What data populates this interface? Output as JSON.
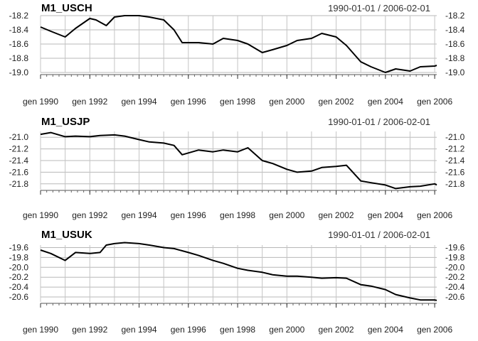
{
  "chart_data": [
    {
      "type": "line",
      "title": "M1_USCH",
      "date_range": "1990-01-01 / 2006-02-01",
      "x_start": "1990-01",
      "x_end": "2006-02",
      "x_tick_labels": [
        "gen 1990",
        "gen 1992",
        "gen 1994",
        "gen 1996",
        "gen 1998",
        "gen 2000",
        "gen 2002",
        "gen 2004",
        "gen 2006"
      ],
      "x_tick_dates": [
        "1990-01",
        "1992-01",
        "1994-01",
        "1996-01",
        "1998-01",
        "2000-01",
        "2002-01",
        "2004-01",
        "2006-01"
      ],
      "ylim": [
        -18.2,
        -19.0
      ],
      "yticks": [
        -18.2,
        -18.4,
        -18.6,
        -18.8,
        -19.0
      ],
      "y_tick_labels": [
        "-18.2",
        "-18.4",
        "-18.6",
        "-18.8",
        "-19.0"
      ],
      "grid": true,
      "series": [
        {
          "x": [
            "1990-01",
            "1990-06",
            "1991-01",
            "1991-06",
            "1992-01",
            "1992-04",
            "1992-09",
            "1993-01",
            "1993-06",
            "1994-01",
            "1994-06",
            "1995-01",
            "1995-06",
            "1995-10",
            "1996-06",
            "1997-01",
            "1997-06",
            "1998-01",
            "1998-06",
            "1999-01",
            "1999-06",
            "2000-01",
            "2000-06",
            "2001-01",
            "2001-06",
            "2002-01",
            "2002-06",
            "2003-01",
            "2003-06",
            "2004-01",
            "2004-06",
            "2005-01",
            "2005-06",
            "2006-01",
            "2006-02"
          ],
          "y": [
            -18.36,
            -18.42,
            -18.5,
            -18.38,
            -18.24,
            -18.26,
            -18.34,
            -18.22,
            -18.2,
            -18.2,
            -18.22,
            -18.26,
            -18.4,
            -18.58,
            -18.58,
            -18.6,
            -18.52,
            -18.55,
            -18.6,
            -18.72,
            -18.68,
            -18.62,
            -18.55,
            -18.52,
            -18.45,
            -18.5,
            -18.62,
            -18.85,
            -18.92,
            -19.0,
            -18.95,
            -18.98,
            -18.92,
            -18.91,
            -18.9
          ]
        }
      ]
    },
    {
      "type": "line",
      "title": "M1_USJP",
      "date_range": "1990-01-01 / 2006-02-01",
      "x_start": "1990-01",
      "x_end": "2006-02",
      "x_tick_labels": [
        "gen 1990",
        "gen 1992",
        "gen 1994",
        "gen 1996",
        "gen 1998",
        "gen 2000",
        "gen 2002",
        "gen 2004",
        "gen 2006"
      ],
      "x_tick_dates": [
        "1990-01",
        "1992-01",
        "1994-01",
        "1996-01",
        "1998-01",
        "2000-01",
        "2002-01",
        "2004-01",
        "2006-01"
      ],
      "ylim": [
        -20.9,
        -21.9
      ],
      "yticks": [
        -21.0,
        -21.2,
        -21.4,
        -21.6,
        -21.8
      ],
      "y_tick_labels": [
        "-21.0",
        "-21.2",
        "-21.4",
        "-21.6",
        "-21.8"
      ],
      "grid": true,
      "series": [
        {
          "x": [
            "1990-01",
            "1990-06",
            "1991-01",
            "1991-06",
            "1992-01",
            "1992-06",
            "1993-01",
            "1993-06",
            "1994-01",
            "1994-06",
            "1995-01",
            "1995-06",
            "1995-10",
            "1996-06",
            "1997-01",
            "1997-06",
            "1998-01",
            "1998-06",
            "1999-01",
            "1999-06",
            "2000-01",
            "2000-06",
            "2001-01",
            "2001-06",
            "2002-01",
            "2002-06",
            "2003-01",
            "2003-06",
            "2004-01",
            "2004-06",
            "2005-01",
            "2005-06",
            "2006-01",
            "2006-02"
          ],
          "y": [
            -20.95,
            -20.92,
            -20.99,
            -20.98,
            -20.99,
            -20.97,
            -20.96,
            -20.98,
            -21.04,
            -21.08,
            -21.1,
            -21.14,
            -21.3,
            -21.22,
            -21.25,
            -21.22,
            -21.25,
            -21.18,
            -21.4,
            -21.45,
            -21.55,
            -21.6,
            -21.58,
            -21.52,
            -21.5,
            -21.48,
            -21.75,
            -21.78,
            -21.82,
            -21.88,
            -21.85,
            -21.84,
            -21.8,
            -21.82
          ]
        }
      ]
    },
    {
      "type": "line",
      "title": "M1_USUK",
      "date_range": "1990-01-01 / 2006-02-01",
      "x_start": "1990-01",
      "x_end": "2006-02",
      "x_tick_labels": [
        "gen 1990",
        "gen 1992",
        "gen 1994",
        "gen 1996",
        "gen 1998",
        "gen 2000",
        "gen 2002",
        "gen 2004",
        "gen 2006"
      ],
      "x_tick_dates": [
        "1990-01",
        "1992-01",
        "1994-01",
        "1996-01",
        "1998-01",
        "2000-01",
        "2002-01",
        "2004-01",
        "2006-01"
      ],
      "ylim": [
        -19.55,
        -20.7
      ],
      "yticks": [
        -19.6,
        -19.8,
        -20.0,
        -20.2,
        -20.4,
        -20.6
      ],
      "y_tick_labels": [
        "-19.6",
        "-19.8",
        "-20.0",
        "-20.2",
        "-20.4",
        "-20.6"
      ],
      "grid": true,
      "series": [
        {
          "x": [
            "1990-01",
            "1990-06",
            "1991-01",
            "1991-06",
            "1992-01",
            "1992-06",
            "1992-09",
            "1993-01",
            "1993-06",
            "1994-01",
            "1994-06",
            "1995-01",
            "1995-06",
            "1996-01",
            "1996-06",
            "1997-01",
            "1997-06",
            "1998-01",
            "1998-06",
            "1999-01",
            "1999-06",
            "2000-01",
            "2000-06",
            "2001-01",
            "2001-06",
            "2002-01",
            "2002-06",
            "2003-01",
            "2003-06",
            "2004-01",
            "2004-06",
            "2005-01",
            "2005-06",
            "2006-01",
            "2006-02"
          ],
          "y": [
            -19.65,
            -19.72,
            -19.86,
            -19.7,
            -19.72,
            -19.7,
            -19.55,
            -19.52,
            -19.5,
            -19.52,
            -19.55,
            -19.6,
            -19.62,
            -19.7,
            -19.76,
            -19.86,
            -19.92,
            -20.02,
            -20.06,
            -20.1,
            -20.15,
            -20.18,
            -20.18,
            -20.2,
            -20.22,
            -20.21,
            -20.22,
            -20.35,
            -20.38,
            -20.45,
            -20.55,
            -20.62,
            -20.66,
            -20.66,
            -20.67
          ]
        }
      ]
    }
  ]
}
